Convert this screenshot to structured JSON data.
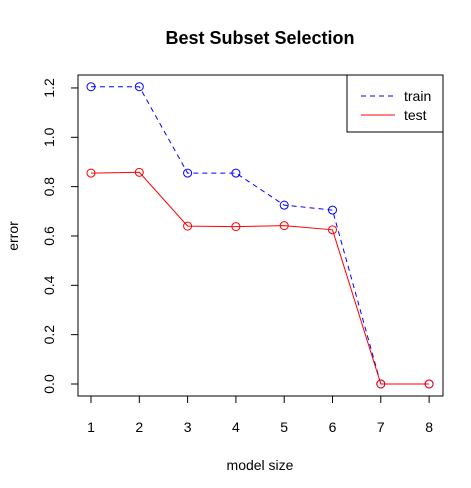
{
  "chart_data": {
    "type": "line",
    "title": "Best Subset Selection",
    "xlabel": "model size",
    "ylabel": "error",
    "x": [
      1,
      2,
      3,
      4,
      5,
      6,
      7,
      8
    ],
    "xlim": [
      1,
      8
    ],
    "ylim": [
      0,
      1.2
    ],
    "xticks": [
      "1",
      "2",
      "3",
      "4",
      "5",
      "6",
      "7",
      "8"
    ],
    "yticks": [
      "0.0",
      "0.2",
      "0.4",
      "0.6",
      "0.8",
      "1.0",
      "1.2"
    ],
    "series": [
      {
        "name": "train",
        "color": "#0000ff",
        "line_style": "dashed",
        "marker": "circle",
        "values": [
          1.205,
          1.205,
          0.855,
          0.855,
          0.725,
          0.705,
          0.0,
          0.0
        ]
      },
      {
        "name": "test",
        "color": "#ff0000",
        "line_style": "solid",
        "marker": "circle",
        "values": [
          0.855,
          0.858,
          0.64,
          0.638,
          0.642,
          0.625,
          0.0,
          0.0
        ]
      }
    ],
    "legend": {
      "position": "top-right",
      "entries": [
        "train",
        "test"
      ]
    },
    "grid": false
  }
}
